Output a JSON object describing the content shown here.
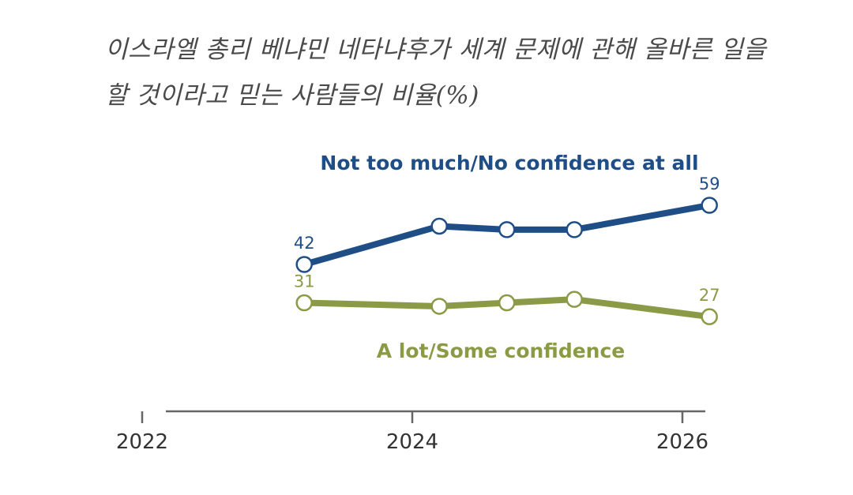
{
  "title": "이스라엘 총리 베냐민 네타냐후가 세계 문제에 관해 올바른 일을 할 것이라고 믿는 사람들의 비율(%)",
  "colors": {
    "series_no_confidence": "#1f4e87",
    "series_confidence": "#8b9a46",
    "axis": "#666666",
    "text": "#333333",
    "title": "#4a4a4a"
  },
  "chart_data": {
    "type": "line",
    "title": "이스라엘 총리 베냐민 네타냐후가 세계 문제에 관해 올바른 일을 할 것이라고 믿는 사람들의 비율(%)",
    "xlabel": "",
    "ylabel": "",
    "x_tick_labels": [
      "2022",
      "2024",
      "2026"
    ],
    "xlim": [
      2022,
      2026.2
    ],
    "ylim": [
      0,
      85
    ],
    "grid": false,
    "legend": "direct labels on series",
    "series": [
      {
        "name": "Not too much/No confidence at all",
        "color": "#1f4e87",
        "points": [
          {
            "x": 2023.2,
            "y": 42,
            "label": "42"
          },
          {
            "x": 2024.2,
            "y": 53,
            "label": ""
          },
          {
            "x": 2024.7,
            "y": 52,
            "label": ""
          },
          {
            "x": 2025.2,
            "y": 52,
            "label": ""
          },
          {
            "x": 2026.2,
            "y": 59,
            "label": "59"
          }
        ]
      },
      {
        "name": "A lot/Some confidence",
        "color": "#8b9a46",
        "points": [
          {
            "x": 2023.2,
            "y": 31,
            "label": "31"
          },
          {
            "x": 2024.2,
            "y": 30,
            "label": ""
          },
          {
            "x": 2024.7,
            "y": 31,
            "label": ""
          },
          {
            "x": 2025.2,
            "y": 32,
            "label": ""
          },
          {
            "x": 2026.2,
            "y": 27,
            "label": "27"
          }
        ]
      }
    ]
  }
}
